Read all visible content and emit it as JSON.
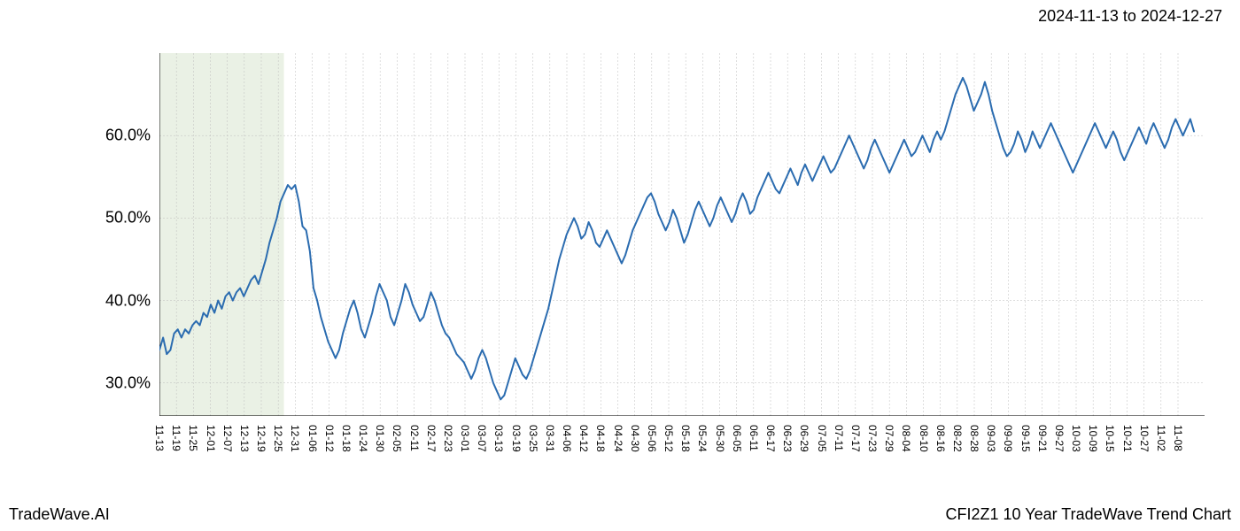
{
  "header": {
    "date_range": "2024-11-13 to 2024-12-27"
  },
  "footer": {
    "brand": "TradeWave.AI",
    "chart_title": "CFI2Z1 10 Year TradeWave Trend Chart"
  },
  "chart": {
    "type": "line",
    "background_color": "#ffffff",
    "grid_color": "#bdbdbd",
    "axis_color": "#000000",
    "line_color": "#2b6cb0",
    "line_width": 2,
    "highlight_fill": "#d8e6cf",
    "highlight_opacity": 0.55,
    "highlight_range": [
      "11-13",
      "12-27"
    ],
    "ylim": [
      26,
      70
    ],
    "yticks": [
      30,
      40,
      50,
      60
    ],
    "ytick_labels": [
      "30.0%",
      "40.0%",
      "50.0%",
      "60.0%"
    ],
    "label_fontsize": 18,
    "tick_fontsize": 12,
    "x_labels": [
      "11-13",
      "11-19",
      "11-25",
      "12-01",
      "12-07",
      "12-13",
      "12-19",
      "12-25",
      "12-31",
      "01-06",
      "01-12",
      "01-18",
      "01-24",
      "01-30",
      "02-05",
      "02-11",
      "02-17",
      "02-23",
      "03-01",
      "03-07",
      "03-13",
      "03-19",
      "03-25",
      "03-31",
      "04-06",
      "04-12",
      "04-18",
      "04-24",
      "04-30",
      "05-06",
      "05-12",
      "05-18",
      "05-24",
      "05-30",
      "06-05",
      "06-11",
      "06-17",
      "06-23",
      "06-29",
      "07-05",
      "07-11",
      "07-17",
      "07-23",
      "07-29",
      "08-04",
      "08-10",
      "08-16",
      "08-22",
      "08-28",
      "09-03",
      "09-09",
      "09-15",
      "09-21",
      "09-27",
      "10-03",
      "10-09",
      "10-15",
      "10-21",
      "10-27",
      "11-02",
      "11-08"
    ],
    "series": {
      "name": "CFI2Z1",
      "values": [
        34.0,
        35.5,
        33.5,
        34.0,
        36.0,
        36.5,
        35.5,
        36.5,
        36.0,
        37.0,
        37.5,
        37.0,
        38.5,
        38.0,
        39.5,
        38.5,
        40.0,
        39.0,
        40.5,
        41.0,
        40.0,
        41.0,
        41.5,
        40.5,
        41.5,
        42.5,
        43.0,
        42.0,
        43.5,
        45.0,
        47.0,
        48.5,
        50.0,
        52.0,
        53.0,
        54.0,
        53.5,
        54.0,
        52.0,
        49.0,
        48.5,
        46.0,
        41.5,
        40.0,
        38.0,
        36.5,
        35.0,
        34.0,
        33.0,
        34.0,
        36.0,
        37.5,
        39.0,
        40.0,
        38.5,
        36.5,
        35.5,
        37.0,
        38.5,
        40.5,
        42.0,
        41.0,
        40.0,
        38.0,
        37.0,
        38.5,
        40.0,
        42.0,
        41.0,
        39.5,
        38.5,
        37.5,
        38.0,
        39.5,
        41.0,
        40.0,
        38.5,
        37.0,
        36.0,
        35.5,
        34.5,
        33.5,
        33.0,
        32.5,
        31.5,
        30.5,
        31.5,
        33.0,
        34.0,
        33.0,
        31.5,
        30.0,
        29.0,
        28.0,
        28.5,
        30.0,
        31.5,
        33.0,
        32.0,
        31.0,
        30.5,
        31.5,
        33.0,
        34.5,
        36.0,
        37.5,
        39.0,
        41.0,
        43.0,
        45.0,
        46.5,
        48.0,
        49.0,
        50.0,
        49.0,
        47.5,
        48.0,
        49.5,
        48.5,
        47.0,
        46.5,
        47.5,
        48.5,
        47.5,
        46.5,
        45.5,
        44.5,
        45.5,
        47.0,
        48.5,
        49.5,
        50.5,
        51.5,
        52.5,
        53.0,
        52.0,
        50.5,
        49.5,
        48.5,
        49.5,
        51.0,
        50.0,
        48.5,
        47.0,
        48.0,
        49.5,
        51.0,
        52.0,
        51.0,
        50.0,
        49.0,
        50.0,
        51.5,
        52.5,
        51.5,
        50.5,
        49.5,
        50.5,
        52.0,
        53.0,
        52.0,
        50.5,
        51.0,
        52.5,
        53.5,
        54.5,
        55.5,
        54.5,
        53.5,
        53.0,
        54.0,
        55.0,
        56.0,
        55.0,
        54.0,
        55.5,
        56.5,
        55.5,
        54.5,
        55.5,
        56.5,
        57.5,
        56.5,
        55.5,
        56.0,
        57.0,
        58.0,
        59.0,
        60.0,
        59.0,
        58.0,
        57.0,
        56.0,
        57.0,
        58.5,
        59.5,
        58.5,
        57.5,
        56.5,
        55.5,
        56.5,
        57.5,
        58.5,
        59.5,
        58.5,
        57.5,
        58.0,
        59.0,
        60.0,
        59.0,
        58.0,
        59.5,
        60.5,
        59.5,
        60.5,
        62.0,
        63.5,
        65.0,
        66.0,
        67.0,
        66.0,
        64.5,
        63.0,
        64.0,
        65.0,
        66.5,
        65.0,
        63.0,
        61.5,
        60.0,
        58.5,
        57.5,
        58.0,
        59.0,
        60.5,
        59.5,
        58.0,
        59.0,
        60.5,
        59.5,
        58.5,
        59.5,
        60.5,
        61.5,
        60.5,
        59.5,
        58.5,
        57.5,
        56.5,
        55.5,
        56.5,
        57.5,
        58.5,
        59.5,
        60.5,
        61.5,
        60.5,
        59.5,
        58.5,
        59.5,
        60.5,
        59.5,
        58.0,
        57.0,
        58.0,
        59.0,
        60.0,
        61.0,
        60.0,
        59.0,
        60.5,
        61.5,
        60.5,
        59.5,
        58.5,
        59.5,
        61.0,
        62.0,
        61.0,
        60.0,
        61.0,
        62.0,
        60.5
      ]
    }
  }
}
